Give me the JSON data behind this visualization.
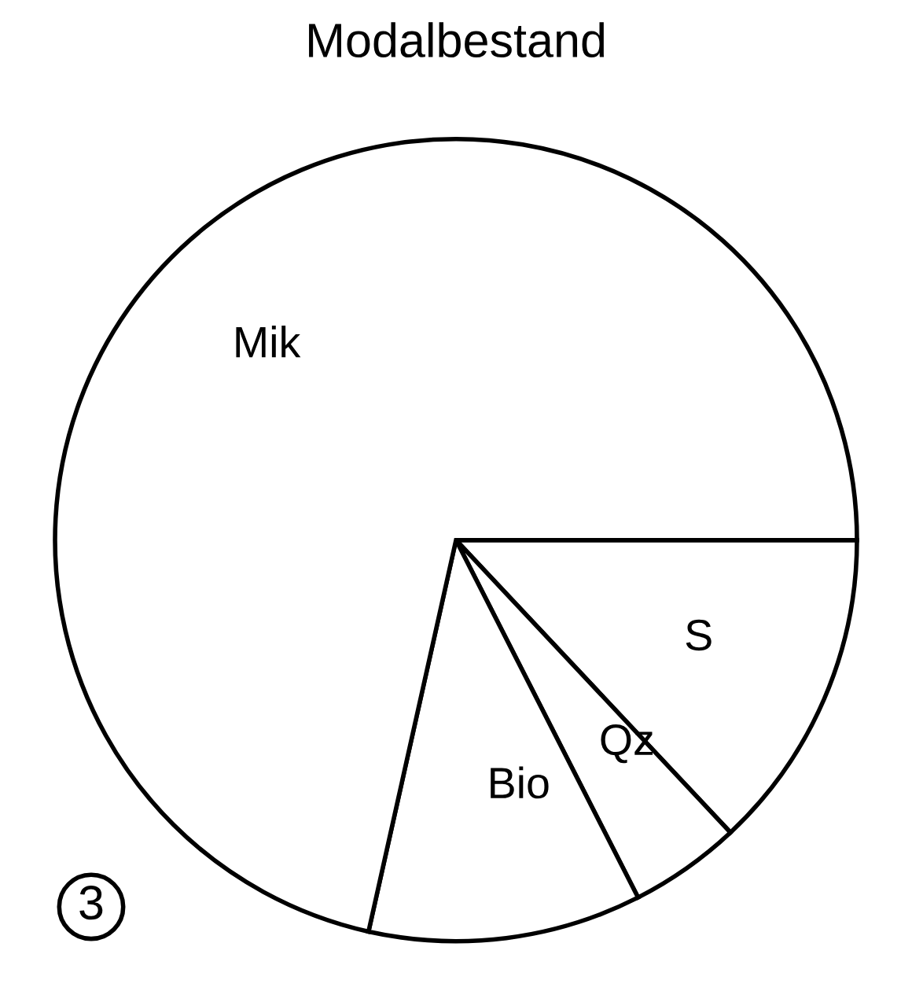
{
  "chart_data": {
    "type": "pie",
    "title": "Modalbestand",
    "categories": [
      "S",
      "Qz",
      "Bio",
      "Mik"
    ],
    "values": [
      13,
      4.5,
      11,
      71.5
    ],
    "colors": [
      "#ffffff",
      "#ffffff",
      "#ffffff",
      "#ffffff"
    ],
    "annotations": [
      "3"
    ]
  }
}
